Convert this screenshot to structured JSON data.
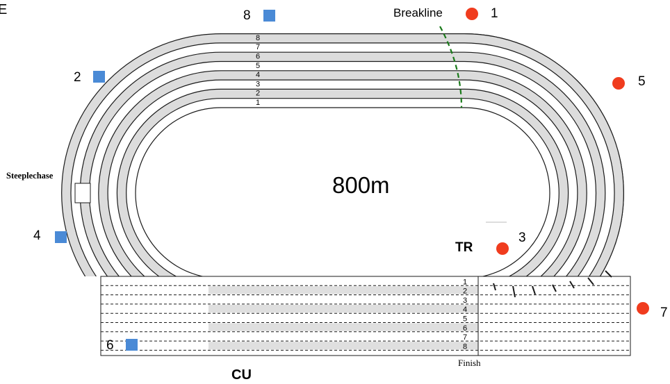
{
  "corner_text": "E",
  "center_label": "800m",
  "steeplechase_label": "Steeplechase",
  "finish_label": "Finish",
  "cu_label": "CU",
  "tr_label": "TR",
  "breakline_label": "Breakline",
  "lane_numbers": [
    "1",
    "2",
    "3",
    "4",
    "5",
    "6",
    "7",
    "8"
  ],
  "colors": {
    "lane_fill": "#dcdcdc",
    "line": "#1a1a1a",
    "breakline": "#1a7a1a",
    "red_marker": "#f03c1e",
    "blue_marker": "#4a8ad6"
  },
  "markers": [
    {
      "number": "1",
      "shape": "red-circle"
    },
    {
      "number": "2",
      "shape": "blue-square"
    },
    {
      "number": "3",
      "shape": "red-circle"
    },
    {
      "number": "4",
      "shape": "blue-square"
    },
    {
      "number": "5",
      "shape": "red-circle"
    },
    {
      "number": "6",
      "shape": "blue-square"
    },
    {
      "number": "7",
      "shape": "red-circle"
    },
    {
      "number": "8",
      "shape": "blue-square"
    }
  ]
}
